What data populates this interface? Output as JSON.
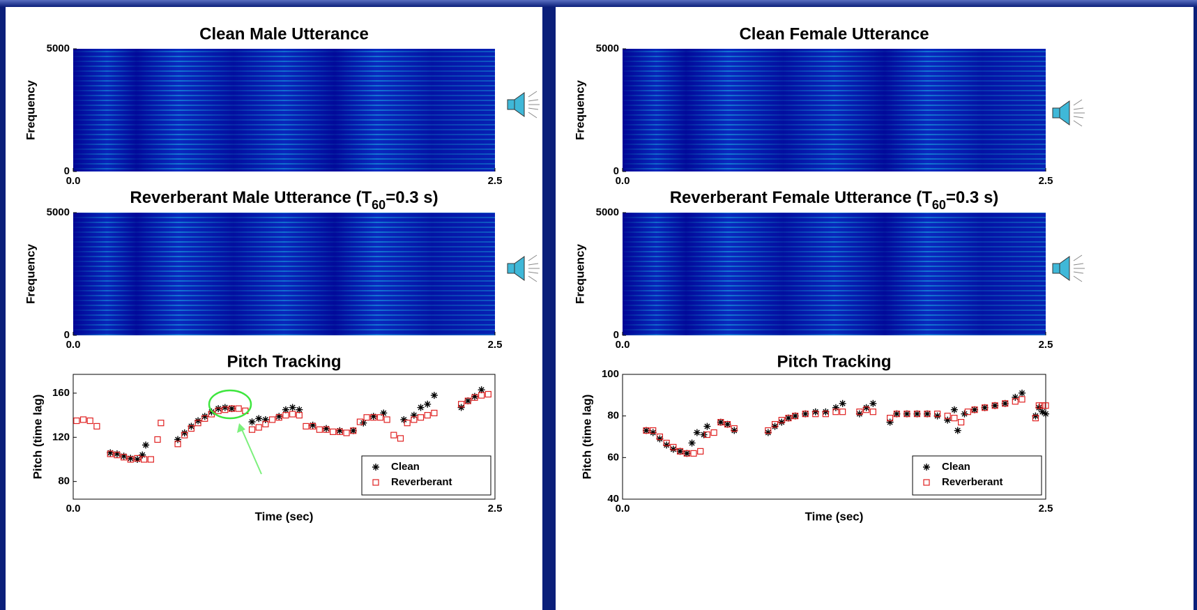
{
  "chart_data": [
    {
      "type": "spectrogram",
      "title": "Clean Male Utterance",
      "ylabel": "Frequency",
      "xlim": [
        0,
        2.5
      ],
      "xticks": [
        {
          "value": 0,
          "label": "0.0"
        },
        2.5
      ],
      "ylim": [
        0,
        5000
      ],
      "yticks": [
        0,
        5000
      ]
    },
    {
      "type": "spectrogram",
      "title": [
        "Reverberant Male Utterance (T",
        "60",
        "=0.3 s)"
      ],
      "ylabel": "Frequency",
      "xlim": [
        0,
        2.5
      ],
      "xticks": [
        {
          "value": 0,
          "label": "0.0"
        },
        2.5
      ],
      "ylim": [
        0,
        5000
      ],
      "yticks": [
        0,
        5000
      ]
    },
    {
      "type": "scatter",
      "title": "Pitch Tracking",
      "xlabel": "Time (sec)",
      "ylabel": "Pitch (time lag)",
      "xlim": [
        0,
        2.5
      ],
      "xticks": [
        {
          "value": 0,
          "label": "0.0"
        },
        2.5
      ],
      "ylim": [
        64,
        177
      ],
      "yticks": [
        80,
        120,
        160
      ],
      "legend": "lower right",
      "series": [
        {
          "name": "Clean",
          "color": "#000000",
          "marker": "asterisk",
          "x": [
            0.22,
            0.26,
            0.3,
            0.34,
            0.38,
            0.41,
            0.43,
            0.62,
            0.66,
            0.7,
            0.74,
            0.78,
            0.82,
            0.86,
            0.9,
            0.94,
            1.06,
            1.1,
            1.14,
            1.22,
            1.26,
            1.3,
            1.34,
            1.42,
            1.5,
            1.58,
            1.66,
            1.72,
            1.78,
            1.84,
            1.96,
            2.02,
            2.06,
            2.1,
            2.14,
            2.3,
            2.34,
            2.38,
            2.42
          ],
          "values": [
            106,
            105,
            103,
            101,
            100,
            104,
            113,
            118,
            124,
            130,
            135,
            139,
            143,
            146,
            147,
            146,
            134,
            137,
            136,
            139,
            145,
            147,
            145,
            131,
            128,
            126,
            126,
            133,
            139,
            142,
            136,
            140,
            147,
            150,
            158,
            147,
            153,
            157,
            163
          ]
        },
        {
          "name": "Reverberant",
          "color": "#e02020",
          "marker": "square",
          "x": [
            0.02,
            0.06,
            0.1,
            0.14,
            0.22,
            0.26,
            0.3,
            0.34,
            0.38,
            0.42,
            0.46,
            0.5,
            0.52,
            0.62,
            0.66,
            0.7,
            0.74,
            0.78,
            0.82,
            0.86,
            0.9,
            0.94,
            0.98,
            1.02,
            1.06,
            1.1,
            1.14,
            1.18,
            1.22,
            1.26,
            1.3,
            1.34,
            1.38,
            1.42,
            1.46,
            1.5,
            1.54,
            1.58,
            1.62,
            1.66,
            1.7,
            1.74,
            1.78,
            1.82,
            1.86,
            1.9,
            1.94,
            1.98,
            2.02,
            2.06,
            2.1,
            2.14,
            2.3,
            2.34,
            2.38,
            2.42,
            2.46
          ],
          "values": [
            135,
            136,
            135,
            130,
            105,
            104,
            102,
            100,
            101,
            100,
            100,
            118,
            133,
            114,
            122,
            128,
            133,
            137,
            141,
            144,
            145,
            146,
            146,
            144,
            127,
            129,
            132,
            136,
            138,
            140,
            141,
            140,
            130,
            130,
            127,
            127,
            125,
            125,
            124,
            126,
            134,
            138,
            138,
            138,
            136,
            122,
            119,
            133,
            136,
            138,
            140,
            142,
            150,
            153,
            156,
            158,
            159
          ]
        }
      ]
    },
    {
      "type": "spectrogram",
      "title": "Clean Female Utterance",
      "ylabel": "Frequency",
      "xlim": [
        0,
        2.5
      ],
      "xticks": [
        {
          "value": 0,
          "label": "0.0"
        },
        2.5
      ],
      "ylim": [
        0,
        5000
      ],
      "yticks": [
        0,
        5000
      ]
    },
    {
      "type": "spectrogram",
      "title": [
        "Reverberant Female Utterance (T",
        "60",
        "=0.3 s)"
      ],
      "ylabel": "Frequency",
      "xlim": [
        0,
        2.5
      ],
      "xticks": [
        {
          "value": 0,
          "label": "0.0"
        },
        2.5
      ],
      "ylim": [
        0,
        5000
      ],
      "yticks": [
        0,
        5000
      ]
    },
    {
      "type": "scatter",
      "title": "Pitch Tracking",
      "xlabel": "Time (sec)",
      "ylabel": "Pitch (time lag)",
      "xlim": [
        0,
        2.5
      ],
      "xticks": [
        {
          "value": 0,
          "label": "0.0"
        },
        2.5
      ],
      "ylim": [
        40,
        100
      ],
      "yticks": [
        40,
        60,
        80,
        100
      ],
      "legend": "lower right",
      "series": [
        {
          "name": "Clean",
          "color": "#000000",
          "marker": "asterisk",
          "x": [
            0.14,
            0.18,
            0.22,
            0.26,
            0.3,
            0.34,
            0.38,
            0.41,
            0.44,
            0.48,
            0.5,
            0.58,
            0.62,
            0.66,
            0.86,
            0.9,
            0.94,
            0.98,
            1.02,
            1.08,
            1.14,
            1.2,
            1.26,
            1.3,
            1.4,
            1.44,
            1.48,
            1.58,
            1.62,
            1.68,
            1.74,
            1.8,
            1.86,
            1.92,
            1.96,
            1.98,
            2.02,
            2.08,
            2.14,
            2.2,
            2.26,
            2.32,
            2.36,
            2.44,
            2.46,
            2.48,
            2.5
          ],
          "values": [
            73,
            72,
            69,
            66,
            64,
            63,
            62,
            67,
            72,
            71,
            75,
            77,
            76,
            73,
            72,
            75,
            77,
            79,
            80,
            81,
            82,
            82,
            84,
            86,
            81,
            84,
            86,
            77,
            81,
            81,
            81,
            81,
            80,
            78,
            83,
            73,
            81,
            83,
            84,
            85,
            86,
            89,
            91,
            80,
            84,
            82,
            81
          ]
        },
        {
          "name": "Reverberant",
          "color": "#e02020",
          "marker": "square",
          "x": [
            0.14,
            0.18,
            0.22,
            0.26,
            0.3,
            0.34,
            0.38,
            0.42,
            0.46,
            0.5,
            0.54,
            0.58,
            0.62,
            0.66,
            0.86,
            0.9,
            0.94,
            0.98,
            1.02,
            1.08,
            1.14,
            1.2,
            1.26,
            1.3,
            1.4,
            1.44,
            1.48,
            1.58,
            1.62,
            1.68,
            1.74,
            1.8,
            1.86,
            1.92,
            1.96,
            2.0,
            2.04,
            2.08,
            2.14,
            2.2,
            2.26,
            2.32,
            2.36,
            2.44,
            2.46,
            2.48,
            2.5
          ],
          "values": [
            73,
            73,
            70,
            67,
            65,
            63,
            62,
            62,
            63,
            71,
            72,
            77,
            76,
            74,
            73,
            76,
            78,
            79,
            80,
            81,
            81,
            81,
            82,
            82,
            82,
            83,
            82,
            79,
            81,
            81,
            81,
            81,
            81,
            80,
            79,
            77,
            82,
            83,
            84,
            85,
            86,
            87,
            88,
            79,
            85,
            85,
            85
          ]
        }
      ]
    }
  ]
}
